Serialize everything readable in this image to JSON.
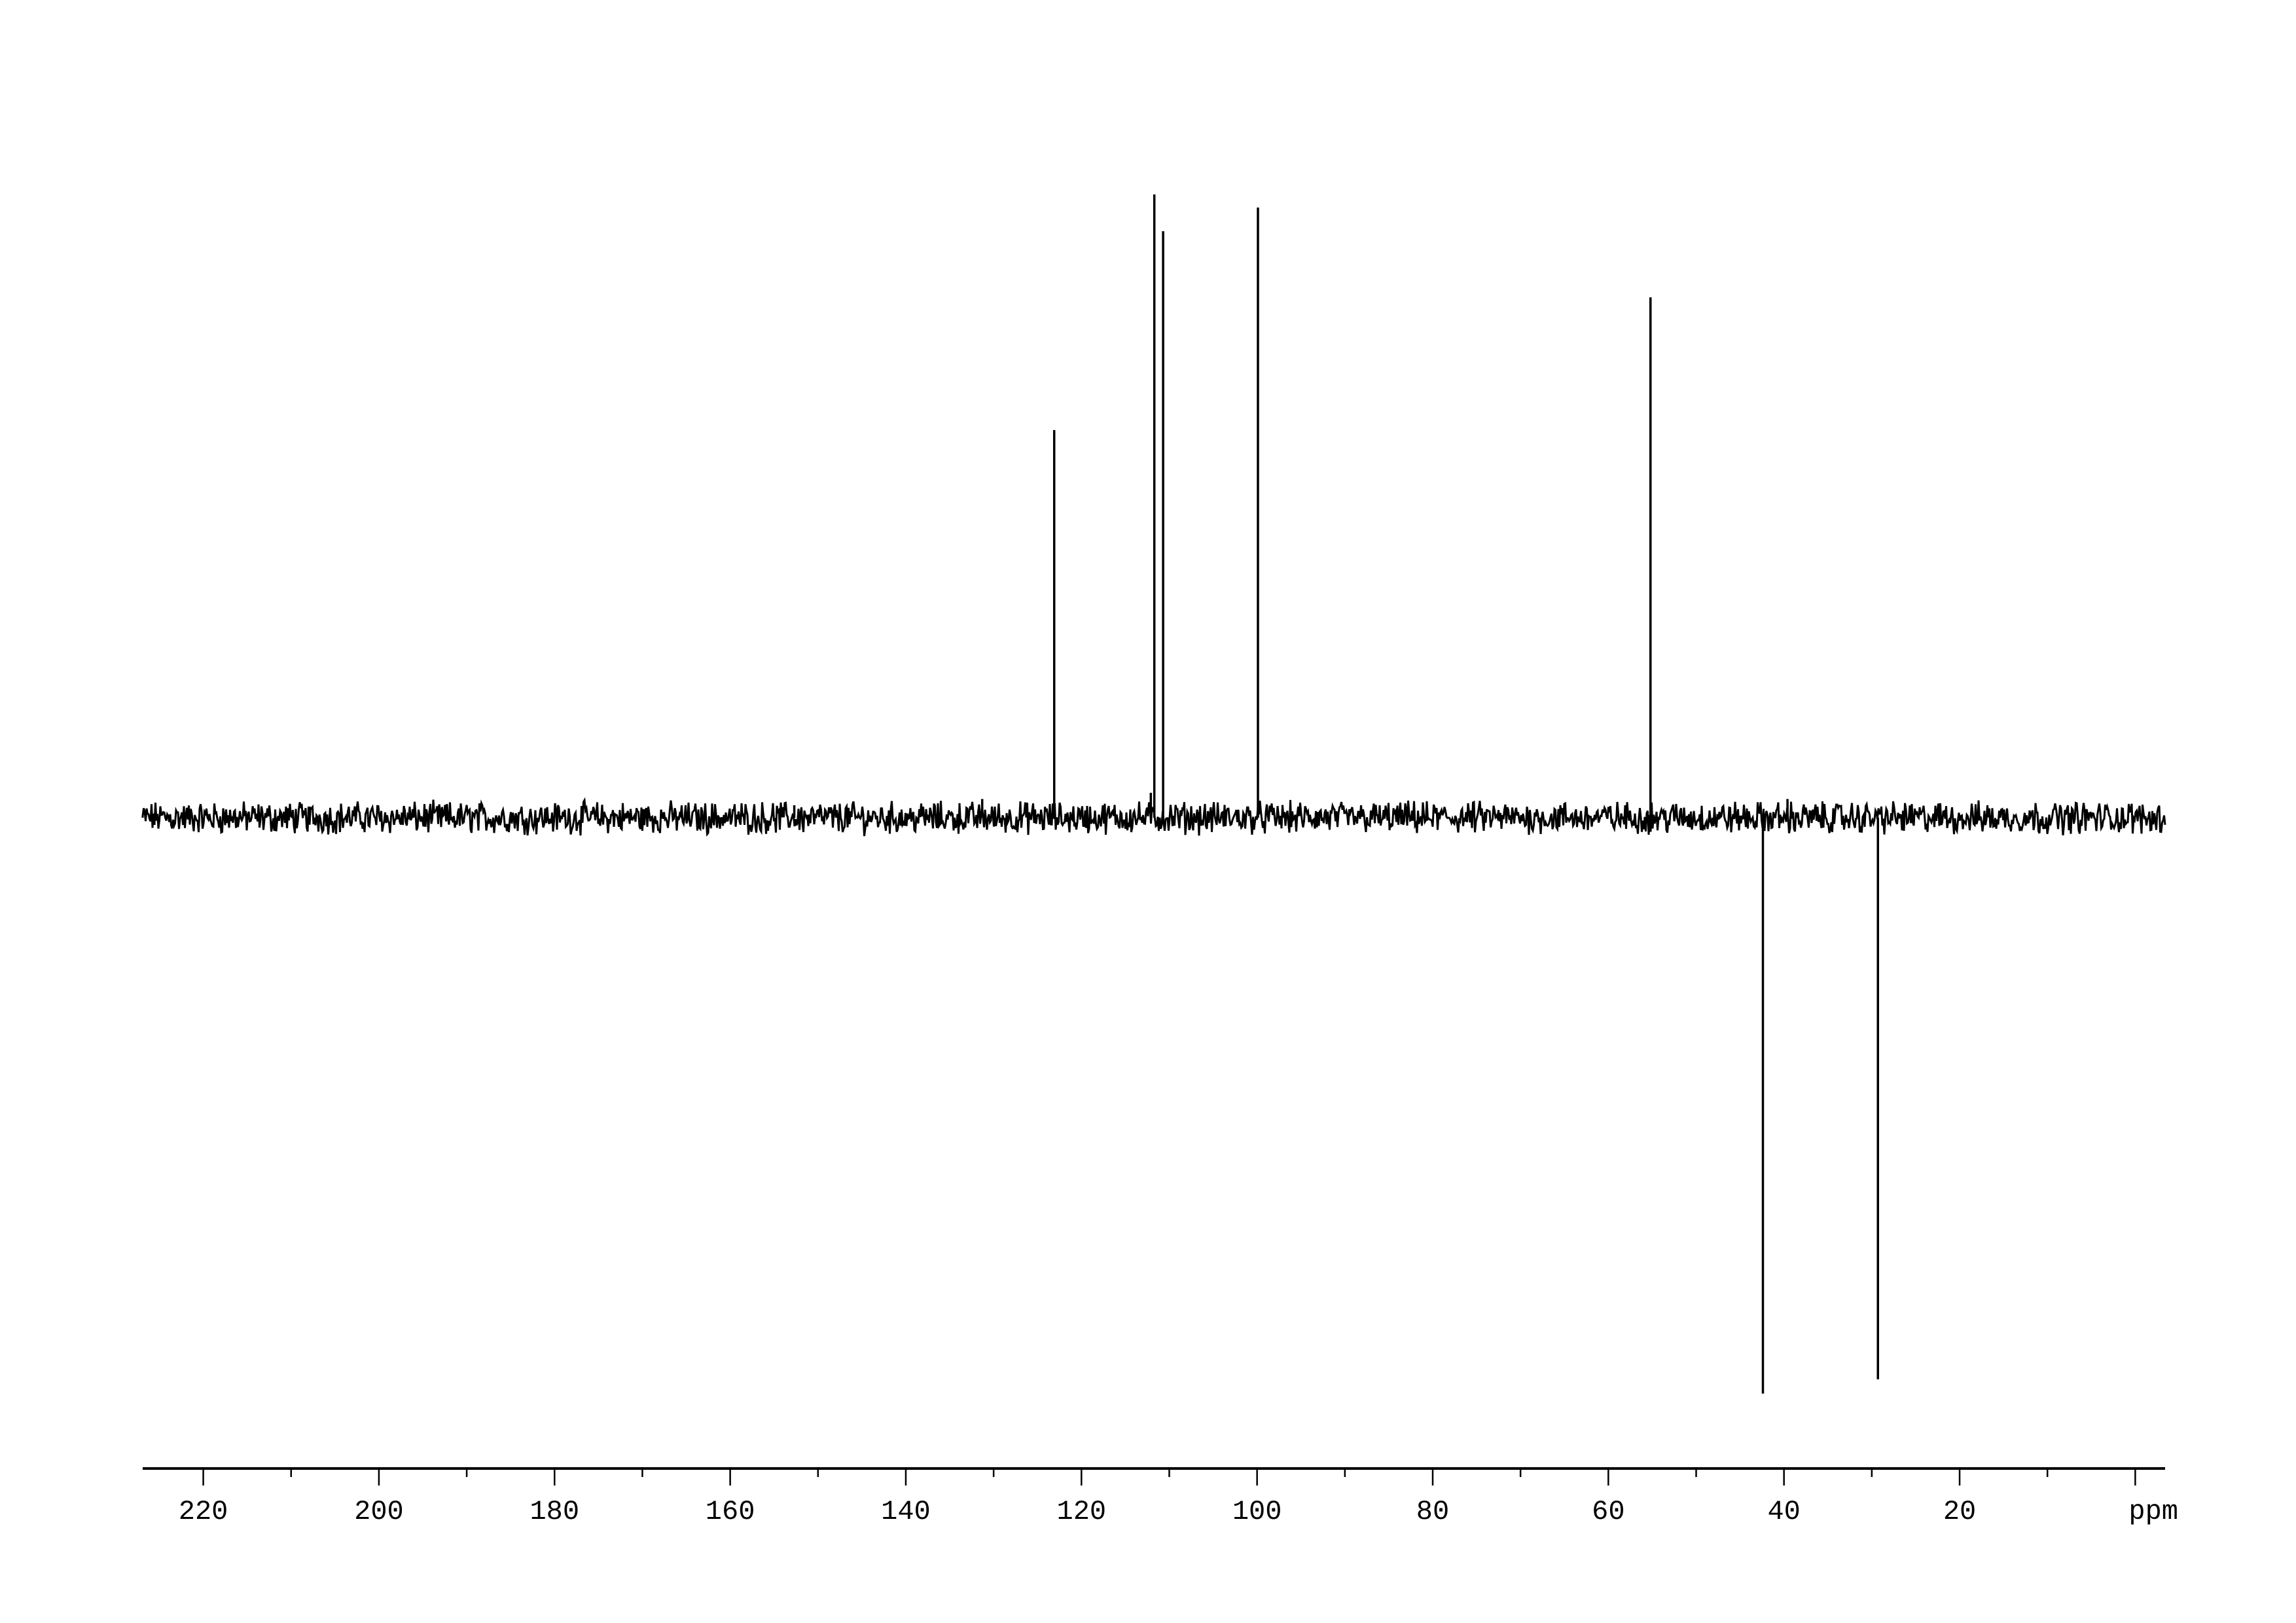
{
  "chart_data": {
    "type": "line",
    "title": "",
    "xlabel": "ppm",
    "ylabel": "",
    "xlim": [
      226.9,
      -3.4
    ],
    "x_reversed": true,
    "grid": false,
    "line_color": "#000000",
    "x_ticks_major": [
      220,
      200,
      180,
      160,
      140,
      120,
      100,
      80,
      60,
      40,
      20,
      0
    ],
    "x_tick_labels": [
      "220",
      "200",
      "180",
      "160",
      "140",
      "120",
      "100",
      "80",
      "60",
      "40",
      "20"
    ],
    "x_unit_label": "ppm",
    "x_ticks_minor_step": 10,
    "y_relative_intensity_range": [
      -100,
      105
    ],
    "peaks": [
      {
        "ppm": 152.7,
        "intensity": 2.0
      },
      {
        "ppm": 131.3,
        "intensity": 3.0
      },
      {
        "ppm": 123.1,
        "intensity": 62.2
      },
      {
        "ppm": 112.1,
        "intensity": 4.0
      },
      {
        "ppm": 111.7,
        "intensity": 100.0
      },
      {
        "ppm": 110.7,
        "intensity": 94.1
      },
      {
        "ppm": 99.9,
        "intensity": 97.9
      },
      {
        "ppm": 55.2,
        "intensity": 83.5
      },
      {
        "ppm": 42.4,
        "intensity": -92.4
      },
      {
        "ppm": 39.6,
        "intensity": 3.0
      },
      {
        "ppm": 29.3,
        "intensity": -90.1
      }
    ],
    "noise_level": 2.0
  }
}
